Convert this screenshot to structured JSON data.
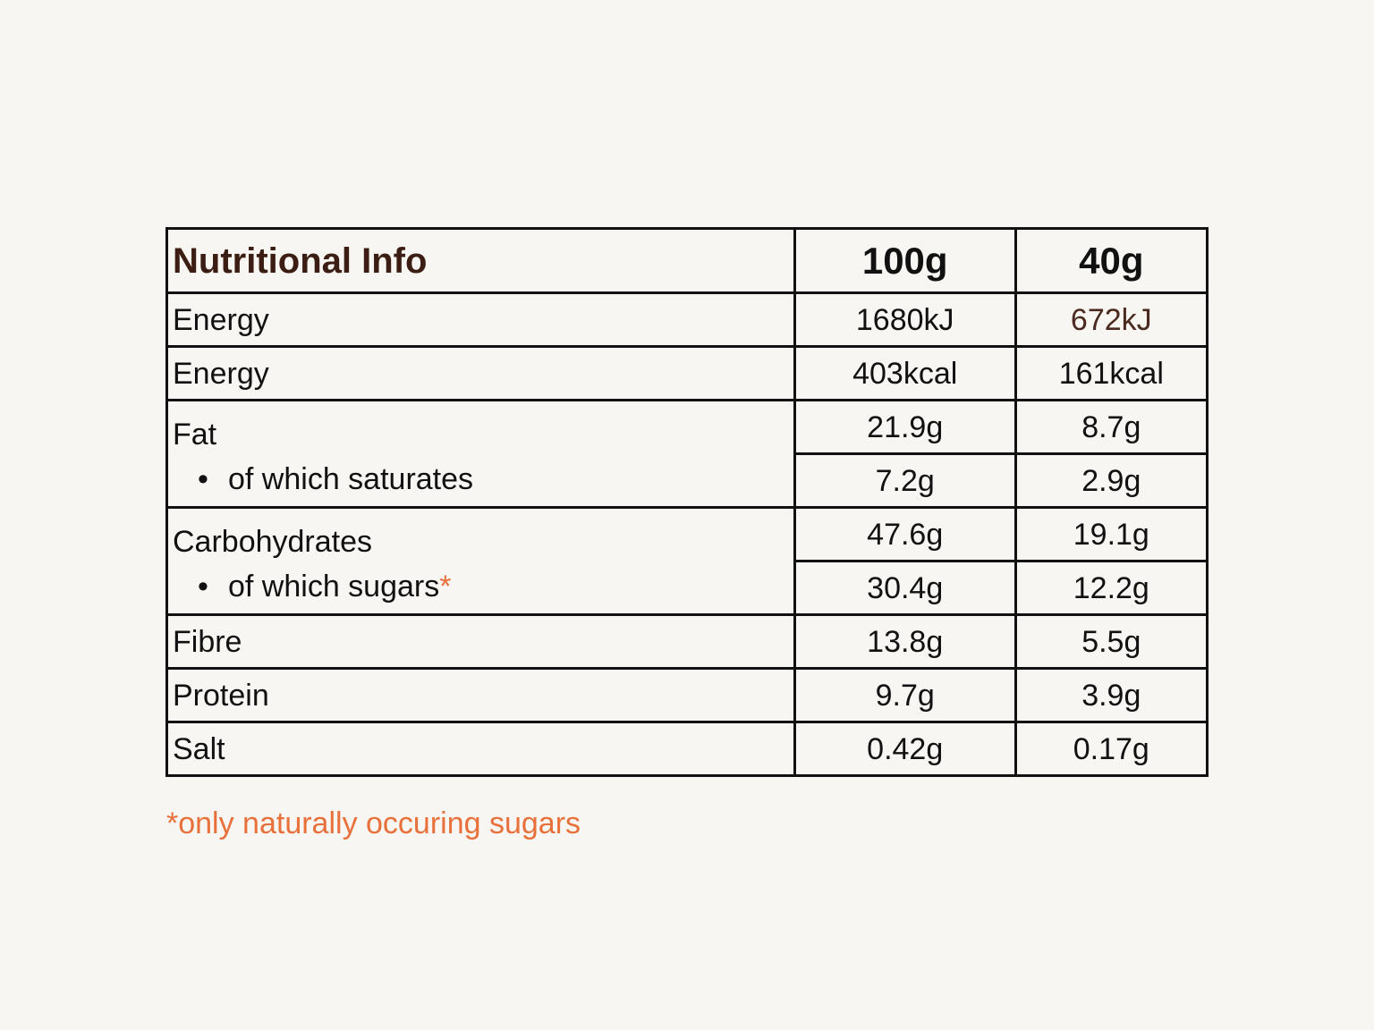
{
  "table": {
    "header": {
      "title": "Nutritional Info",
      "col_100": "100g",
      "col_40": "40g"
    },
    "rows": [
      {
        "label": "Energy",
        "v100": "1680kJ",
        "v40": "672kJ"
      },
      {
        "label": "Energy",
        "v100": "403kcal",
        "v40": "161kcal"
      },
      {
        "label": "Fat",
        "v100": "21.9g",
        "v40": "8.7g"
      },
      {
        "label": "of which saturates",
        "v100": "7.2g",
        "v40": "2.9g"
      },
      {
        "label": "Carbohydrates",
        "v100": "47.6g",
        "v40": "19.1g"
      },
      {
        "label": "of which sugars",
        "marker": "*",
        "v100": "30.4g",
        "v40": "12.2g"
      },
      {
        "label": "Fibre",
        "v100": "13.8g",
        "v40": "5.5g"
      },
      {
        "label": "Protein",
        "v100": "9.7g",
        "v40": "3.9g"
      },
      {
        "label": "Salt",
        "v100": "0.42g",
        "v40": "0.17g"
      }
    ],
    "bullet": "•"
  },
  "footnote": "*only naturally occuring sugars",
  "colors": {
    "background": "#f8f6f2",
    "title": "#3b1d14",
    "accent": "#e8703a",
    "border": "#111111"
  }
}
